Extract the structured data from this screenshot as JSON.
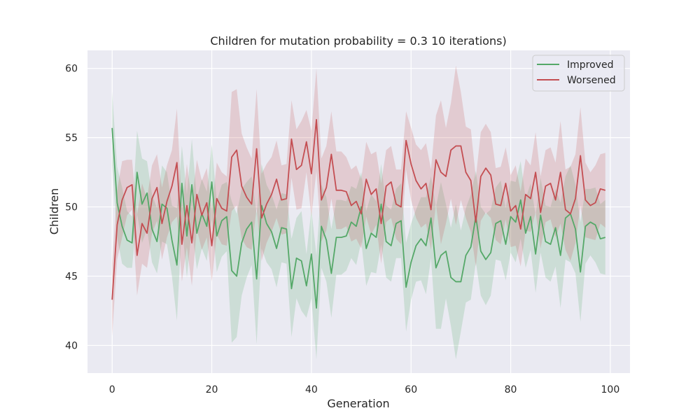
{
  "chart_data": {
    "type": "line",
    "title": "Children for mutation probability = 0.3 10 iterations)",
    "xlabel": "Generation",
    "ylabel": "Children",
    "xlim": [
      -4.95,
      103.95
    ],
    "ylim": [
      38,
      61.3
    ],
    "xticks": [
      0,
      20,
      40,
      60,
      80,
      100
    ],
    "yticks": [
      40,
      45,
      50,
      55,
      60
    ],
    "grid": true,
    "legend_position": "top-right",
    "background_color": "#eaeaf2",
    "grid_color": "#ffffff",
    "band": "confidence interval shaded around each mean line",
    "x": [
      0,
      1,
      2,
      3,
      4,
      5,
      6,
      7,
      8,
      9,
      10,
      11,
      12,
      13,
      14,
      15,
      16,
      17,
      18,
      19,
      20,
      21,
      22,
      23,
      24,
      25,
      26,
      27,
      28,
      29,
      30,
      31,
      32,
      33,
      34,
      35,
      36,
      37,
      38,
      39,
      40,
      41,
      42,
      43,
      44,
      45,
      46,
      47,
      48,
      49,
      50,
      51,
      52,
      53,
      54,
      55,
      56,
      57,
      58,
      59,
      60,
      61,
      62,
      63,
      64,
      65,
      66,
      67,
      68,
      69,
      70,
      71,
      72,
      73,
      74,
      75,
      76,
      77,
      78,
      79,
      80,
      81,
      82,
      83,
      84,
      85,
      86,
      87,
      88,
      89,
      90,
      91,
      92,
      93,
      94,
      95,
      96,
      97,
      98,
      99
    ],
    "series": [
      {
        "name": "Improved",
        "color": "#55a868",
        "values": [
          55.7,
          50.3,
          48.6,
          47.6,
          47.4,
          52.5,
          50.2,
          51.0,
          48.4,
          47.5,
          50.2,
          49.9,
          47.6,
          45.8,
          51.7,
          47.9,
          51.6,
          48.1,
          49.5,
          48.6,
          51.8,
          47.9,
          49.0,
          49.3,
          45.4,
          45.0,
          47.4,
          48.4,
          48.9,
          44.8,
          50.1,
          48.8,
          48.2,
          47.0,
          48.5,
          48.4,
          44.1,
          46.3,
          46.1,
          44.3,
          46.6,
          42.7,
          48.6,
          47.6,
          45.2,
          47.8,
          47.8,
          47.9,
          48.9,
          48.6,
          50.0,
          47.0,
          48.1,
          47.8,
          50.2,
          47.5,
          47.2,
          48.8,
          49.0,
          44.2,
          46.0,
          47.2,
          47.7,
          47.2,
          49.2,
          45.6,
          46.5,
          46.8,
          44.9,
          44.6,
          44.6,
          46.5,
          47.1,
          49.3,
          46.8,
          46.2,
          46.7,
          48.8,
          49.0,
          47.3,
          49.3,
          48.9,
          50.5,
          48.1,
          49.3,
          46.6,
          49.4,
          47.5,
          47.3,
          48.5,
          46.5,
          49.2,
          49.5,
          48.4,
          45.3,
          48.6,
          48.9,
          48.7,
          47.7,
          47.8
        ],
        "lower": [
          53.0,
          47.8,
          45.9,
          45.6,
          45.6,
          49.5,
          47.4,
          48.4,
          46.0,
          45.2,
          47.5,
          47.3,
          45.0,
          41.8,
          48.7,
          44.9,
          48.5,
          45.5,
          47.0,
          46.1,
          49.1,
          45.3,
          46.4,
          46.8,
          40.2,
          40.6,
          43.6,
          44.9,
          45.8,
          40.1,
          47.0,
          46.0,
          45.5,
          44.2,
          46.0,
          45.9,
          40.6,
          43.4,
          42.5,
          42.0,
          43.4,
          39.0,
          45.6,
          44.6,
          42.0,
          45.1,
          45.1,
          45.4,
          46.3,
          45.8,
          47.5,
          44.3,
          45.3,
          45.2,
          47.3,
          44.9,
          44.6,
          46.3,
          46.3,
          41.0,
          43.3,
          44.6,
          44.7,
          43.7,
          46.3,
          41.2,
          41.2,
          43.4,
          41.4,
          39.0,
          41.0,
          43.1,
          43.3,
          46.0,
          43.6,
          42.9,
          43.6,
          46.2,
          46.1,
          44.7,
          46.7,
          46.0,
          47.7,
          45.6,
          46.9,
          43.8,
          46.7,
          44.9,
          44.6,
          45.7,
          42.7,
          46.2,
          46.0,
          45.2,
          41.7,
          45.9,
          46.5,
          46.0,
          45.2,
          45.1
        ],
        "upper": [
          58.3,
          52.9,
          51.4,
          49.7,
          49.3,
          55.5,
          53.5,
          53.3,
          50.9,
          49.9,
          53.0,
          52.5,
          50.1,
          49.9,
          54.4,
          50.9,
          54.9,
          50.6,
          52.0,
          51.1,
          54.5,
          50.4,
          51.6,
          51.8,
          50.4,
          49.5,
          51.3,
          51.8,
          52.2,
          49.5,
          53.1,
          51.6,
          50.9,
          49.8,
          51.0,
          50.9,
          47.7,
          49.2,
          49.7,
          46.6,
          49.8,
          46.5,
          51.6,
          50.7,
          48.4,
          50.5,
          50.5,
          50.4,
          51.5,
          51.3,
          52.5,
          49.7,
          50.9,
          50.4,
          53.1,
          50.1,
          49.8,
          51.3,
          51.7,
          47.4,
          48.8,
          49.8,
          50.7,
          50.7,
          52.2,
          50.0,
          51.8,
          50.2,
          48.5,
          50.2,
          48.3,
          49.9,
          50.9,
          52.6,
          50.0,
          49.5,
          49.8,
          51.4,
          51.9,
          49.9,
          51.9,
          51.8,
          53.3,
          50.6,
          51.7,
          49.4,
          52.1,
          50.1,
          50.0,
          51.3,
          50.3,
          52.2,
          53.0,
          51.6,
          48.9,
          51.3,
          51.3,
          51.4,
          50.2,
          50.5
        ]
      },
      {
        "name": "Worsened",
        "color": "#c44e52",
        "values": [
          43.3,
          48.7,
          50.5,
          51.4,
          51.6,
          46.5,
          48.8,
          48.1,
          50.6,
          51.4,
          48.8,
          50.4,
          51.5,
          53.2,
          47.3,
          50.1,
          47.4,
          50.9,
          49.4,
          50.3,
          47.2,
          50.6,
          49.9,
          49.7,
          53.6,
          54.1,
          51.5,
          50.7,
          50.2,
          54.2,
          49.2,
          50.2,
          50.9,
          52.0,
          50.5,
          50.6,
          54.9,
          52.7,
          53.0,
          54.7,
          52.4,
          56.3,
          50.5,
          51.4,
          53.8,
          51.2,
          51.2,
          51.1,
          50.1,
          50.4,
          49.5,
          52.0,
          50.9,
          51.3,
          48.8,
          51.5,
          51.8,
          50.2,
          50.0,
          54.8,
          53.1,
          51.9,
          51.3,
          51.7,
          49.8,
          53.4,
          52.5,
          52.2,
          54.1,
          54.4,
          54.4,
          52.5,
          51.9,
          48.9,
          52.2,
          52.8,
          52.3,
          50.2,
          50.1,
          51.7,
          49.7,
          50.1,
          48.4,
          50.9,
          50.6,
          52.5,
          49.6,
          51.5,
          51.7,
          50.5,
          52.5,
          49.8,
          49.5,
          50.6,
          53.7,
          50.5,
          50.1,
          50.3,
          51.3,
          51.2
        ],
        "lower": [
          40.7,
          46.2,
          47.8,
          49.4,
          49.8,
          43.6,
          45.9,
          45.6,
          48.1,
          49.0,
          46.2,
          47.8,
          48.9,
          49.3,
          44.6,
          47.1,
          44.3,
          48.4,
          46.9,
          47.8,
          44.6,
          48.0,
          47.3,
          47.2,
          49.7,
          50.1,
          47.7,
          47.1,
          46.9,
          49.9,
          46.1,
          47.4,
          48.2,
          49.2,
          48.0,
          48.1,
          52.1,
          49.8,
          49.9,
          52.5,
          49.3,
          52.6,
          47.5,
          48.3,
          50.6,
          48.4,
          48.4,
          48.6,
          47.5,
          47.7,
          47.0,
          49.3,
          48.0,
          48.7,
          45.9,
          48.9,
          49.2,
          47.7,
          47.3,
          52.7,
          50.5,
          49.2,
          48.5,
          48.8,
          46.9,
          50.2,
          47.3,
          48.8,
          50.6,
          48.7,
          50.5,
          49.2,
          48.2,
          45.7,
          49.0,
          49.6,
          49.2,
          47.6,
          47.3,
          49.1,
          47.1,
          47.2,
          45.7,
          48.3,
          48.2,
          49.6,
          47.0,
          48.9,
          49.1,
          47.8,
          48.8,
          46.9,
          46.1,
          47.4,
          50.1,
          47.8,
          47.7,
          47.6,
          48.8,
          48.5
        ],
        "upper": [
          45.9,
          51.2,
          53.3,
          53.4,
          53.4,
          49.4,
          51.7,
          50.6,
          53.0,
          53.8,
          51.4,
          53.0,
          54.1,
          57.1,
          49.9,
          53.1,
          50.4,
          53.4,
          51.9,
          52.8,
          49.8,
          53.2,
          52.5,
          52.2,
          58.3,
          58.5,
          55.3,
          54.3,
          53.5,
          58.5,
          52.4,
          53.1,
          53.6,
          54.8,
          53.0,
          53.1,
          57.7,
          55.6,
          56.2,
          57.0,
          55.5,
          60.0,
          53.5,
          54.4,
          56.9,
          54.0,
          54.0,
          53.6,
          52.7,
          53.0,
          52.0,
          54.7,
          53.8,
          54.0,
          51.7,
          54.1,
          54.4,
          52.7,
          52.7,
          56.9,
          55.7,
          54.5,
          54.1,
          54.6,
          52.7,
          56.6,
          57.7,
          55.7,
          57.5,
          60.2,
          58.3,
          55.8,
          55.6,
          52.1,
          55.4,
          56.0,
          55.4,
          52.8,
          52.9,
          54.3,
          52.3,
          53.0,
          51.1,
          53.5,
          53.0,
          55.4,
          52.2,
          54.1,
          54.3,
          53.2,
          56.2,
          52.7,
          52.9,
          53.8,
          57.2,
          53.2,
          52.5,
          53.0,
          53.8,
          53.9
        ]
      }
    ]
  }
}
